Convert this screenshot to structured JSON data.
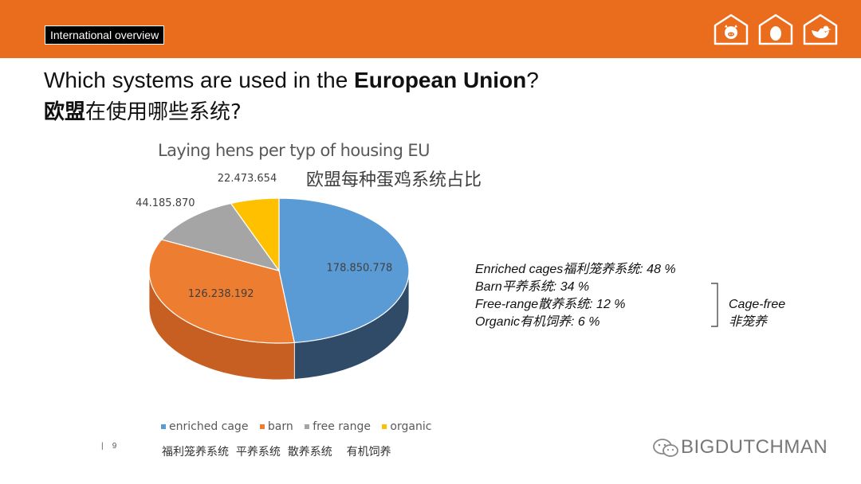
{
  "header": {
    "tag": "International overview",
    "icons": [
      "pig-icon",
      "egg-icon",
      "chicken-icon"
    ]
  },
  "title": {
    "en_prefix": "Which systems are used in the ",
    "en_bold": "European Union",
    "en_suffix": "?",
    "cn_bold": "欧盟",
    "cn_rest": "在使用哪些系统?"
  },
  "chart_data": {
    "type": "pie",
    "title": "Laying hens per typ of housing EU",
    "subtitle": "欧盟每种蛋鸡系统占比",
    "categories": [
      "enriched cage",
      "barn",
      "free range",
      "organic"
    ],
    "values": [
      178850778,
      126238192,
      44185870,
      22473654
    ],
    "value_labels": [
      "178.850.778",
      "126.238.192",
      "44.185.870",
      "22.473.654"
    ],
    "colors": [
      "#5b9bd5",
      "#ed7d31",
      "#a5a5a5",
      "#ffc000"
    ],
    "legend_position": "bottom",
    "legend_cn": [
      "福利笼养系统",
      "平养系统",
      "散养系统",
      "有机饲养"
    ]
  },
  "stats": [
    "Enriched cages福利笼养系统: 48 %",
    "Barn平养系统: 34 %",
    "Free-range散养系统: 12 %",
    "Organic有机饲养: 6 %"
  ],
  "cagefree": {
    "en": "Cage-free",
    "cn": "非笼养"
  },
  "footer": {
    "page": "9",
    "watermark": "BIGDUTCHMAN"
  }
}
